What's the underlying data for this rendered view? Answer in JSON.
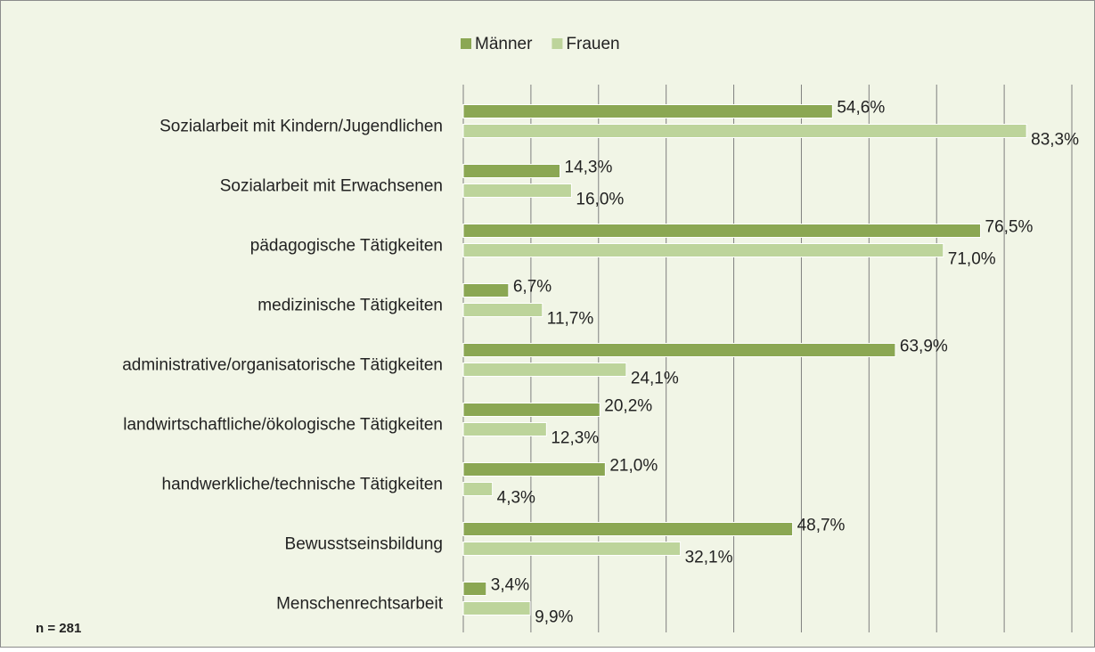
{
  "chart_data": {
    "type": "bar",
    "orientation": "horizontal",
    "categories": [
      "Sozialarbeit mit Kindern/Jugendlichen",
      "Sozialarbeit mit Erwachsenen",
      "pädagogische Tätigkeiten",
      "medizinische Tätigkeiten",
      "administrative/organisatorische Tätigkeiten",
      "landwirtschaftliche/ökologische Tätigkeiten",
      "handwerkliche/technische Tätigkeiten",
      "Bewusstseinsbildung",
      "Menschenrechtsarbeit"
    ],
    "series": [
      {
        "name": "Männer",
        "color": "#8ba753",
        "values": [
          54.6,
          14.3,
          76.5,
          6.7,
          63.9,
          20.2,
          21.0,
          48.7,
          3.4
        ],
        "value_labels": [
          "54,6%",
          "14,3%",
          "76,5%",
          "6,7%",
          "63,9%",
          "20,2%",
          "21,0%",
          "48,7%",
          "3,4%"
        ]
      },
      {
        "name": "Frauen",
        "color": "#bdd49b",
        "values": [
          83.3,
          16.0,
          71.0,
          11.7,
          24.1,
          12.3,
          4.3,
          32.1,
          9.9
        ],
        "value_labels": [
          "83,3%",
          "16,0%",
          "71,0%",
          "11,7%",
          "24,1%",
          "12,3%",
          "4,3%",
          "32,1%",
          "9,9%"
        ]
      }
    ],
    "xlim": [
      0,
      90
    ],
    "xticks": [
      0,
      10,
      20,
      30,
      40,
      50,
      60,
      70,
      80,
      90
    ],
    "grid": true,
    "legend": "top",
    "annotation": "n = 281"
  }
}
